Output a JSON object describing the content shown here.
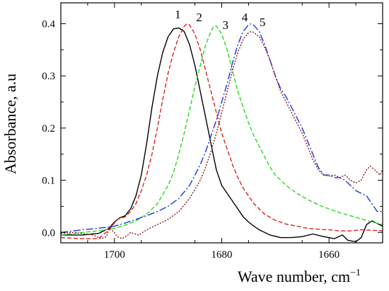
{
  "chart_data": {
    "type": "line",
    "xlabel": "Wave number, cm",
    "xlabel_sup": "−1",
    "ylabel": "Absorbance, a.u",
    "xlim": [
      1710,
      1650
    ],
    "ylim": [
      -0.02,
      0.44
    ],
    "x_ticks": [
      {
        "value": 1700,
        "label": "1700"
      },
      {
        "value": 1680,
        "label": "1680"
      },
      {
        "value": 1660,
        "label": "1660"
      }
    ],
    "y_ticks": [
      {
        "value": 0.0,
        "label": "0.0"
      },
      {
        "value": 0.1,
        "label": "0.1"
      },
      {
        "value": 0.2,
        "label": "0.2"
      },
      {
        "value": 0.3,
        "label": "0.3"
      },
      {
        "value": 0.4,
        "label": "0.4"
      }
    ],
    "grid": false,
    "series": [
      {
        "name": "1",
        "color": "#000000",
        "dash": "solid",
        "label_pos": [
          1688.2,
          0.41
        ],
        "points": [
          [
            1710,
            -0.005
          ],
          [
            1706,
            -0.005
          ],
          [
            1703,
            -0.002
          ],
          [
            1701,
            0.008
          ],
          [
            1700,
            0.02
          ],
          [
            1699,
            0.028
          ],
          [
            1698,
            0.032
          ],
          [
            1697,
            0.045
          ],
          [
            1696,
            0.07
          ],
          [
            1695,
            0.11
          ],
          [
            1694,
            0.17
          ],
          [
            1693,
            0.24
          ],
          [
            1692,
            0.3
          ],
          [
            1691,
            0.345
          ],
          [
            1690,
            0.375
          ],
          [
            1689,
            0.39
          ],
          [
            1688,
            0.392
          ],
          [
            1687,
            0.385
          ],
          [
            1686,
            0.36
          ],
          [
            1685,
            0.32
          ],
          [
            1684,
            0.27
          ],
          [
            1683,
            0.22
          ],
          [
            1682,
            0.17
          ],
          [
            1681,
            0.12
          ],
          [
            1680,
            0.09
          ],
          [
            1679,
            0.075
          ],
          [
            1678,
            0.06
          ],
          [
            1677,
            0.045
          ],
          [
            1676,
            0.03
          ],
          [
            1675,
            0.02
          ],
          [
            1674,
            0.012
          ],
          [
            1673,
            0.005
          ],
          [
            1671,
            -0.005
          ],
          [
            1669,
            -0.01
          ],
          [
            1667,
            -0.01
          ],
          [
            1665,
            -0.008
          ],
          [
            1663,
            -0.003
          ],
          [
            1661,
            -0.008
          ],
          [
            1659,
            -0.012
          ],
          [
            1657.5,
            -0.005
          ],
          [
            1656.5,
            -0.015
          ],
          [
            1655,
            -0.018
          ],
          [
            1654,
            -0.01
          ],
          [
            1653,
            0.015
          ],
          [
            1652,
            0.022
          ],
          [
            1650,
            0.012
          ]
        ]
      },
      {
        "name": "2",
        "color": "#dd2222",
        "dash": "6,3",
        "label_pos": [
          1684.2,
          0.405
        ],
        "points": [
          [
            1710,
            -0.01
          ],
          [
            1706,
            -0.012
          ],
          [
            1703,
            -0.012
          ],
          [
            1701,
            0.005
          ],
          [
            1699.5,
            0.025
          ],
          [
            1698,
            0.03
          ],
          [
            1697,
            0.04
          ],
          [
            1696,
            0.055
          ],
          [
            1695,
            0.08
          ],
          [
            1694,
            0.11
          ],
          [
            1693,
            0.15
          ],
          [
            1692,
            0.2
          ],
          [
            1691,
            0.255
          ],
          [
            1690,
            0.305
          ],
          [
            1689,
            0.345
          ],
          [
            1688,
            0.375
          ],
          [
            1687,
            0.395
          ],
          [
            1686.5,
            0.4
          ],
          [
            1686,
            0.398
          ],
          [
            1685,
            0.38
          ],
          [
            1684,
            0.35
          ],
          [
            1683,
            0.31
          ],
          [
            1682,
            0.27
          ],
          [
            1681,
            0.23
          ],
          [
            1680,
            0.19
          ],
          [
            1679,
            0.16
          ],
          [
            1678,
            0.13
          ],
          [
            1677,
            0.105
          ],
          [
            1676,
            0.085
          ],
          [
            1675,
            0.07
          ],
          [
            1674,
            0.055
          ],
          [
            1672,
            0.035
          ],
          [
            1670,
            0.023
          ],
          [
            1668,
            0.016
          ],
          [
            1666,
            0.012
          ],
          [
            1664,
            0.008
          ],
          [
            1662,
            0.006
          ],
          [
            1660,
            0.005
          ],
          [
            1658,
            0.003
          ],
          [
            1656,
            0.003
          ],
          [
            1654,
            0.005
          ],
          [
            1652,
            0.004
          ],
          [
            1650,
            0.003
          ]
        ]
      },
      {
        "name": "3",
        "color": "#22dd22",
        "dash": "6,3",
        "label_pos": [
          1679.3,
          0.39
        ],
        "points": [
          [
            1710,
            -0.005
          ],
          [
            1706,
            0.0
          ],
          [
            1703,
            0.003
          ],
          [
            1700,
            0.008
          ],
          [
            1698,
            0.014
          ],
          [
            1696,
            0.022
          ],
          [
            1694,
            0.035
          ],
          [
            1692,
            0.055
          ],
          [
            1690,
            0.09
          ],
          [
            1689,
            0.115
          ],
          [
            1688,
            0.15
          ],
          [
            1687,
            0.19
          ],
          [
            1686,
            0.235
          ],
          [
            1685,
            0.28
          ],
          [
            1684,
            0.32
          ],
          [
            1683,
            0.36
          ],
          [
            1682,
            0.385
          ],
          [
            1681.5,
            0.395
          ],
          [
            1681,
            0.396
          ],
          [
            1680,
            0.38
          ],
          [
            1679,
            0.35
          ],
          [
            1678,
            0.31
          ],
          [
            1677,
            0.27
          ],
          [
            1676,
            0.24
          ],
          [
            1675,
            0.21
          ],
          [
            1674,
            0.185
          ],
          [
            1673,
            0.165
          ],
          [
            1672,
            0.145
          ],
          [
            1671,
            0.125
          ],
          [
            1670,
            0.11
          ],
          [
            1668,
            0.09
          ],
          [
            1666,
            0.075
          ],
          [
            1664,
            0.063
          ],
          [
            1662,
            0.053
          ],
          [
            1660,
            0.045
          ],
          [
            1658,
            0.038
          ],
          [
            1656,
            0.032
          ],
          [
            1654,
            0.026
          ],
          [
            1652,
            0.02
          ],
          [
            1650,
            0.015
          ]
        ]
      },
      {
        "name": "4",
        "color": "#2233dd",
        "dash": "10,3,2,3",
        "label_pos": [
          1675.7,
          0.405
        ],
        "points": [
          [
            1710,
            0.0
          ],
          [
            1706,
            0.005
          ],
          [
            1703,
            0.008
          ],
          [
            1700,
            0.012
          ],
          [
            1698,
            0.018
          ],
          [
            1696,
            0.025
          ],
          [
            1694,
            0.032
          ],
          [
            1692,
            0.04
          ],
          [
            1690,
            0.05
          ],
          [
            1688,
            0.065
          ],
          [
            1686,
            0.09
          ],
          [
            1685,
            0.11
          ],
          [
            1684,
            0.13
          ],
          [
            1683,
            0.155
          ],
          [
            1682,
            0.185
          ],
          [
            1681,
            0.215
          ],
          [
            1680,
            0.25
          ],
          [
            1679,
            0.285
          ],
          [
            1678,
            0.325
          ],
          [
            1677,
            0.36
          ],
          [
            1676,
            0.385
          ],
          [
            1675,
            0.398
          ],
          [
            1674.5,
            0.4
          ],
          [
            1674,
            0.397
          ],
          [
            1673,
            0.385
          ],
          [
            1672,
            0.36
          ],
          [
            1671,
            0.33
          ],
          [
            1670,
            0.3
          ],
          [
            1669,
            0.275
          ],
          [
            1668,
            0.26
          ],
          [
            1667,
            0.24
          ],
          [
            1666,
            0.22
          ],
          [
            1665,
            0.2
          ],
          [
            1664,
            0.175
          ],
          [
            1663,
            0.15
          ],
          [
            1662,
            0.125
          ],
          [
            1661,
            0.11
          ],
          [
            1660,
            0.11
          ],
          [
            1659,
            0.105
          ],
          [
            1658,
            0.105
          ],
          [
            1657,
            0.1
          ],
          [
            1656,
            0.09
          ],
          [
            1655,
            0.08
          ],
          [
            1654,
            0.075
          ],
          [
            1653,
            0.07
          ],
          [
            1652,
            0.055
          ],
          [
            1651,
            0.04
          ],
          [
            1650,
            0.04
          ]
        ]
      },
      {
        "name": "5",
        "color": "#8b1a1a",
        "dash": "2,2",
        "label_pos": [
          1672.4,
          0.395
        ],
        "points": [
          [
            1710,
            -0.002
          ],
          [
            1708,
            0.0
          ],
          [
            1706,
            -0.002
          ],
          [
            1704,
            -0.005
          ],
          [
            1702.5,
            -0.012
          ],
          [
            1701.5,
            -0.008
          ],
          [
            1701,
            0.008
          ],
          [
            1700,
            0.0
          ],
          [
            1699.5,
            -0.008
          ],
          [
            1698.5,
            -0.012
          ],
          [
            1697.5,
            -0.005
          ],
          [
            1697,
            0.0
          ],
          [
            1695.5,
            -0.005
          ],
          [
            1694,
            0.005
          ],
          [
            1692,
            0.015
          ],
          [
            1690,
            0.025
          ],
          [
            1688,
            0.04
          ],
          [
            1686,
            0.065
          ],
          [
            1684,
            0.1
          ],
          [
            1683,
            0.125
          ],
          [
            1682,
            0.155
          ],
          [
            1681,
            0.19
          ],
          [
            1680,
            0.23
          ],
          [
            1679,
            0.27
          ],
          [
            1678,
            0.31
          ],
          [
            1677,
            0.345
          ],
          [
            1676,
            0.37
          ],
          [
            1675,
            0.383
          ],
          [
            1674.5,
            0.385
          ],
          [
            1674,
            0.383
          ],
          [
            1673,
            0.375
          ],
          [
            1672,
            0.355
          ],
          [
            1671,
            0.33
          ],
          [
            1670,
            0.3
          ],
          [
            1669,
            0.27
          ],
          [
            1668,
            0.25
          ],
          [
            1667,
            0.23
          ],
          [
            1666,
            0.21
          ],
          [
            1665,
            0.19
          ],
          [
            1664,
            0.165
          ],
          [
            1663,
            0.14
          ],
          [
            1662,
            0.12
          ],
          [
            1661,
            0.11
          ],
          [
            1660,
            0.108
          ],
          [
            1659,
            0.11
          ],
          [
            1658,
            0.105
          ],
          [
            1657,
            0.11
          ],
          [
            1656,
            0.1
          ],
          [
            1655,
            0.095
          ],
          [
            1654,
            0.1
          ],
          [
            1653,
            0.12
          ],
          [
            1652.3,
            0.127
          ],
          [
            1651.5,
            0.12
          ],
          [
            1650.5,
            0.11
          ],
          [
            1650,
            0.12
          ]
        ]
      }
    ]
  }
}
